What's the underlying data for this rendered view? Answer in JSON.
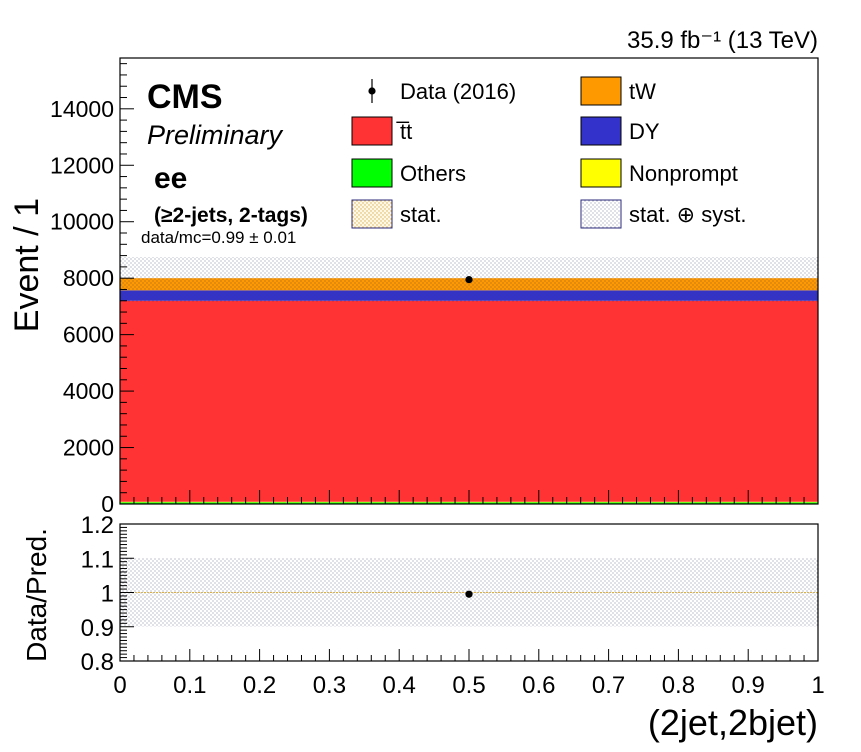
{
  "lumi_label": "35.9 fb⁻¹ (13 TeV)",
  "cms_label": "CMS",
  "prelim_label": "Preliminary",
  "channel_label": "ee",
  "selection_label": "(≥2-jets, 2-tags)",
  "datamc_label": "data/mc=0.99 ± 0.01",
  "legend": [
    {
      "label": "Data (2016)",
      "kind": "marker",
      "color": "#000000"
    },
    {
      "label": "tW",
      "kind": "box",
      "color": "#ff9900"
    },
    {
      "label": "t̅t",
      "kind": "box",
      "color": "#ff3333"
    },
    {
      "label": "DY",
      "kind": "box",
      "color": "#3333cc"
    },
    {
      "label": "Others",
      "kind": "box",
      "color": "#00ff00"
    },
    {
      "label": "Nonprompt",
      "kind": "box",
      "color": "#ffff00"
    },
    {
      "label": "stat.",
      "kind": "hatch-stat",
      "color": "#e8c87a"
    },
    {
      "label": "stat. ⊕ syst.",
      "kind": "hatch-syst",
      "color": "#333366"
    }
  ],
  "chart_data": [
    {
      "type": "bar",
      "stacked": true,
      "ylabel": "Event / 1",
      "xlabel": "(2jet,2bjet)",
      "xlim": [
        0,
        1
      ],
      "ylim": [
        0,
        15800
      ],
      "yticks": [
        0,
        2000,
        4000,
        6000,
        8000,
        10000,
        12000,
        14000
      ],
      "ytick_labels": [
        "0",
        "2000",
        "4000",
        "6000",
        "8000",
        "10000",
        "12000",
        "14000"
      ],
      "bin": [
        0,
        1
      ],
      "series": [
        {
          "name": "Others",
          "value": 60,
          "color": "#00ff00"
        },
        {
          "name": "Nonprompt",
          "value": 20,
          "color": "#ffff00"
        },
        {
          "name": "t̅t",
          "value": 7120,
          "color": "#ff3333"
        },
        {
          "name": "DY",
          "value": 370,
          "color": "#3333cc"
        },
        {
          "name": "tW",
          "value": 430,
          "color": "#ff9900"
        }
      ],
      "data_point": {
        "x": 0.5,
        "y": 7950
      },
      "syst_band": [
        7150,
        8750
      ]
    },
    {
      "type": "scatter",
      "ylabel": "Data/Pred.",
      "xlim": [
        0,
        1
      ],
      "ylim": [
        0.8,
        1.2
      ],
      "yticks": [
        0.8,
        0.9,
        1,
        1.1,
        1.2
      ],
      "ytick_labels": [
        "0.8",
        "0.9",
        "1",
        "1.1",
        "1.2"
      ],
      "xticks": [
        0,
        0.1,
        0.2,
        0.3,
        0.4,
        0.5,
        0.6,
        0.7,
        0.8,
        0.9,
        1
      ],
      "xtick_labels": [
        "0",
        "0.1",
        "0.2",
        "0.3",
        "0.4",
        "0.5",
        "0.6",
        "0.7",
        "0.8",
        "0.9",
        "1"
      ],
      "points": [
        {
          "x": 0.5,
          "y": 0.995
        }
      ],
      "syst_band": [
        0.9,
        1.1
      ]
    }
  ]
}
